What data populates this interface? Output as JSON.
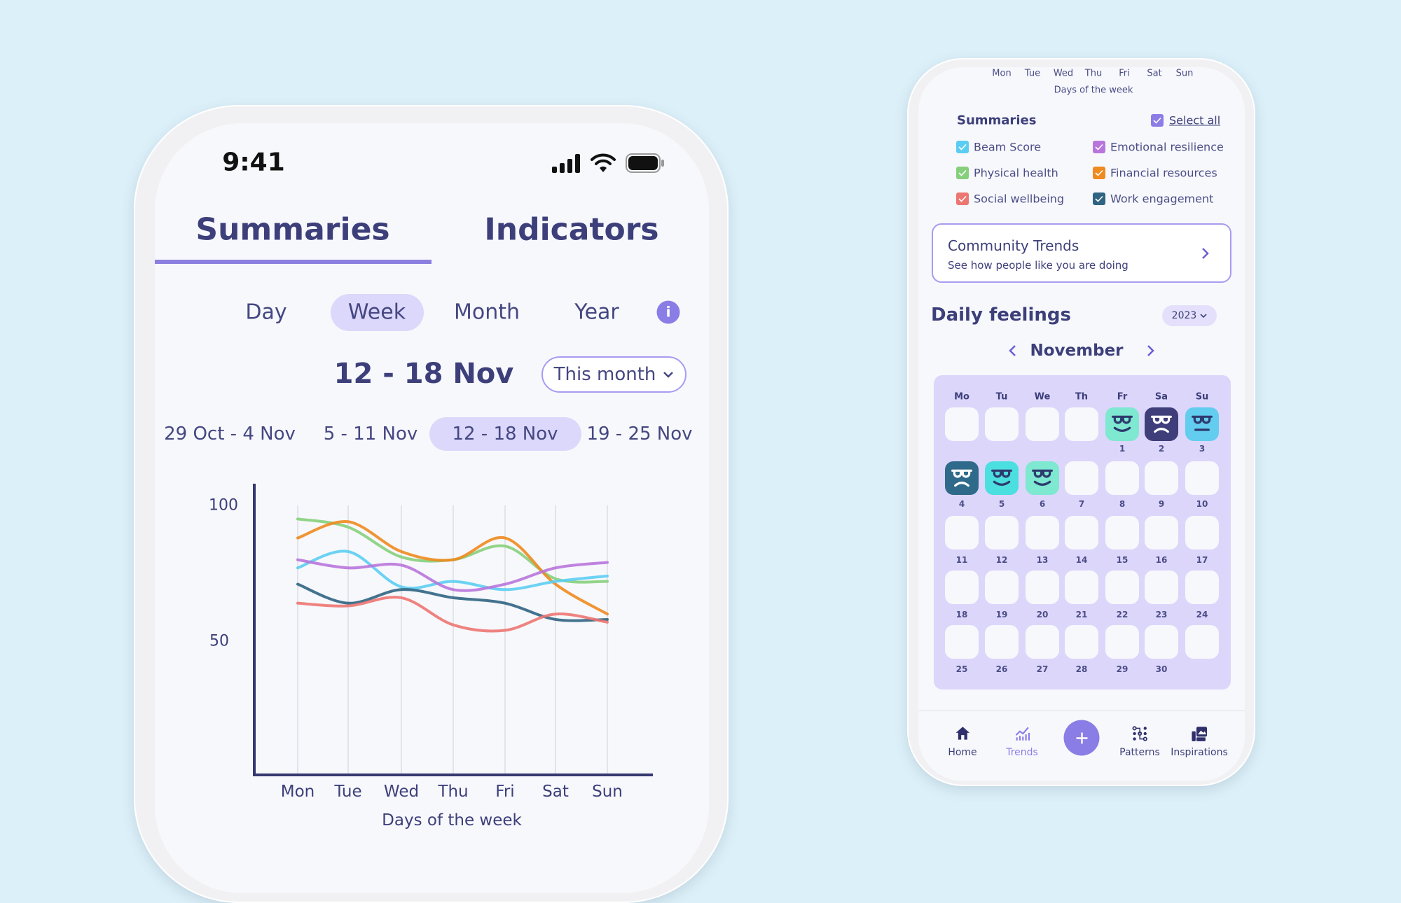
{
  "status_bar": {
    "time": "9:41",
    "icons": [
      "signal-icon",
      "wifi-icon",
      "battery-icon"
    ]
  },
  "tabs": [
    {
      "label": "Summaries",
      "active": true
    },
    {
      "label": "Indicators",
      "active": false
    }
  ],
  "periods": [
    {
      "label": "Day"
    },
    {
      "label": "Week",
      "active": true
    },
    {
      "label": "Month"
    },
    {
      "label": "Year"
    }
  ],
  "range_title": "12 - 18 Nov",
  "range_dropdown": "This month",
  "weeks": [
    {
      "label": "29 Oct - 4 Nov"
    },
    {
      "label": "5 - 11 Nov"
    },
    {
      "label": "12 - 18 Nov",
      "active": true
    },
    {
      "label": "19 - 25 Nov"
    }
  ],
  "chart_data": {
    "type": "line",
    "xlabel": "Days of the week",
    "ylabel": "",
    "categories": [
      "Mon",
      "Tue",
      "Wed",
      "Thu",
      "Fri",
      "Sat",
      "Sun"
    ],
    "yticks": [
      "100",
      "50"
    ],
    "ylim": [
      0,
      100
    ],
    "grid": "vertical",
    "series": [
      {
        "name": "Physical health",
        "color": "#86cf7c",
        "values": [
          95,
          92,
          81,
          80,
          85,
          73,
          72
        ]
      },
      {
        "name": "Financial resources",
        "color": "#ee8a1f",
        "values": [
          88,
          94,
          83,
          80,
          88,
          71,
          60
        ]
      },
      {
        "name": "Beam Score",
        "color": "#5ccdf2",
        "values": [
          77,
          83,
          70,
          72,
          69,
          72,
          74
        ]
      },
      {
        "name": "Emotional resilience",
        "color": "#b876dc",
        "values": [
          80,
          77,
          78,
          69,
          71,
          77,
          79
        ]
      },
      {
        "name": "Work engagement",
        "color": "#2f6482",
        "values": [
          71,
          64,
          69,
          66,
          64,
          58,
          58
        ]
      },
      {
        "name": "Social wellbeing",
        "color": "#ec7672",
        "values": [
          64,
          63,
          66,
          56,
          54,
          60,
          57
        ]
      }
    ]
  },
  "right": {
    "top_days": [
      "Mon",
      "Tue",
      "Wed",
      "Thu",
      "Fri",
      "Sat",
      "Sun"
    ],
    "top_xlabel": "Days of the week",
    "summaries_title": "Summaries",
    "select_all": "Select all",
    "select_all_color": "#8a7de6",
    "checkboxes": [
      {
        "label": "Beam Score",
        "color": "#5ccdf2",
        "checked": true
      },
      {
        "label": "Emotional resilience",
        "color": "#b876dc",
        "checked": true
      },
      {
        "label": "Physical health",
        "color": "#86cf7c",
        "checked": true
      },
      {
        "label": "Financial resources",
        "color": "#ee8a1f",
        "checked": true
      },
      {
        "label": "Social wellbeing",
        "color": "#ec7672",
        "checked": true
      },
      {
        "label": "Work engagement",
        "color": "#2f6482",
        "checked": true
      }
    ],
    "community": {
      "title": "Community Trends",
      "subtitle": "See how people like you are doing"
    },
    "daily_title": "Daily feelings",
    "year": "2023",
    "month": "November",
    "weekday_headers": [
      "Mo",
      "Tu",
      "We",
      "Th",
      "Fr",
      "Sa",
      "Su"
    ],
    "calendar": [
      [
        null,
        null,
        null,
        null,
        {
          "day": "1",
          "mood": "happy",
          "color": "#7ee8d0"
        },
        {
          "day": "2",
          "mood": "sad",
          "color": "#3f3d7a"
        },
        {
          "day": "3",
          "mood": "neutral",
          "color": "#63cdf0"
        }
      ],
      [
        {
          "day": "4",
          "mood": "sad",
          "color": "#2f6a8a"
        },
        {
          "day": "5",
          "mood": "happy",
          "color": "#4cdfe0"
        },
        {
          "day": "6",
          "mood": "happy",
          "color": "#7ee8d0"
        },
        {
          "day": "7"
        },
        {
          "day": "8"
        },
        {
          "day": "9"
        },
        {
          "day": "10"
        }
      ],
      [
        {
          "day": "11"
        },
        {
          "day": "12"
        },
        {
          "day": "13"
        },
        {
          "day": "14"
        },
        {
          "day": "15"
        },
        {
          "day": "16"
        },
        {
          "day": "17"
        }
      ],
      [
        {
          "day": "18"
        },
        {
          "day": "19"
        },
        {
          "day": "20"
        },
        {
          "day": "21"
        },
        {
          "day": "22"
        },
        {
          "day": "23"
        },
        {
          "day": "24"
        }
      ],
      [
        {
          "day": "25"
        },
        {
          "day": "26"
        },
        {
          "day": "27"
        },
        {
          "day": "28"
        },
        {
          "day": "29"
        },
        {
          "day": "30"
        },
        null
      ]
    ],
    "nav": [
      {
        "label": "Home",
        "icon": "home-icon"
      },
      {
        "label": "Trends",
        "icon": "trends-icon",
        "active": true
      },
      {
        "label": "",
        "icon": "plus-icon"
      },
      {
        "label": "Patterns",
        "icon": "patterns-icon"
      },
      {
        "label": "Inspirations",
        "icon": "inspirations-icon"
      }
    ],
    "accent": "#8a7de6"
  }
}
